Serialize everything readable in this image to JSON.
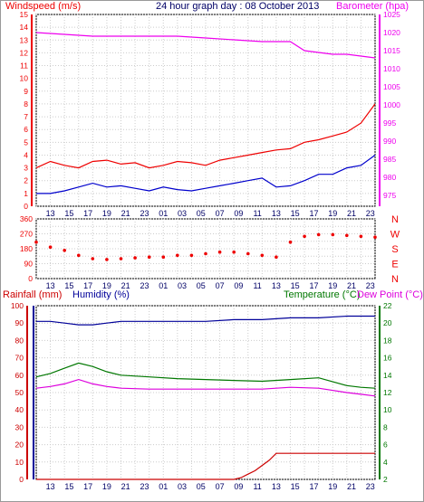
{
  "header": {
    "wind_label": "Windspeed (m/s)",
    "title": "24 hour graph day : 08 October 2013",
    "baro_label": "Barometer (hpa)"
  },
  "bottom_header": {
    "rain_label": "Rainfall (mm)",
    "humidity_label": "Humidity (%)",
    "temp_label": "Temperature (°C)",
    "dew_label": "Dew Point (°C)"
  },
  "x_ticks": [
    "13",
    "15",
    "17",
    "19",
    "21",
    "23",
    "01",
    "03",
    "05",
    "07",
    "09",
    "11",
    "13",
    "15",
    "17",
    "19",
    "21",
    "23"
  ],
  "colors": {
    "wind_gust": "#ee0000",
    "wind_avg": "#0000cc",
    "barometer": "#ee00ee",
    "wind_dir": "#ee0000",
    "rain": "#cc0000",
    "humidity": "#000099",
    "temperature": "#007700",
    "dewpoint": "#dd00dd"
  },
  "chart_data": [
    {
      "type": "line",
      "name": "wind-barometer",
      "x_range": [
        12,
        36
      ],
      "y_left": {
        "label": "Windspeed (m/s)",
        "range": [
          0,
          15
        ],
        "ticks": [
          0,
          1,
          2,
          3,
          4,
          5,
          6,
          7,
          8,
          9,
          10,
          11,
          12,
          13,
          14,
          15
        ]
      },
      "y_right": {
        "label": "Barometer (hpa)",
        "range": [
          972,
          1025
        ],
        "ticks": [
          975,
          980,
          985,
          990,
          995,
          1000,
          1005,
          1010,
          1015,
          1020,
          1025
        ]
      },
      "series": [
        {
          "name": "Windspeed (m/s)",
          "key": "gust",
          "axis": "left",
          "x": [
            12,
            13,
            14,
            15,
            16,
            17,
            18,
            19,
            20,
            21,
            22,
            23,
            24,
            25,
            26,
            27,
            28,
            29,
            30,
            31,
            32,
            33,
            34,
            35,
            36
          ],
          "y": [
            3,
            3.5,
            3.2,
            3,
            3.5,
            3.6,
            3.3,
            3.4,
            3,
            3.2,
            3.5,
            3.4,
            3.2,
            3.6,
            3.8,
            4,
            4.2,
            4.4,
            4.5,
            5,
            5.2,
            5.5,
            5.8,
            6.5,
            8
          ]
        },
        {
          "name": "wind-average",
          "key": "avg",
          "axis": "left",
          "x": [
            12,
            13,
            14,
            15,
            16,
            17,
            18,
            19,
            20,
            21,
            22,
            23,
            24,
            25,
            26,
            27,
            28,
            29,
            30,
            31,
            32,
            33,
            34,
            35,
            36
          ],
          "y": [
            1,
            1,
            1.2,
            1.5,
            1.8,
            1.5,
            1.6,
            1.4,
            1.2,
            1.5,
            1.3,
            1.2,
            1.4,
            1.6,
            1.8,
            2,
            2.2,
            1.5,
            1.6,
            2,
            2.5,
            2.5,
            3,
            3.2,
            4
          ]
        },
        {
          "name": "Barometer (hpa)",
          "key": "baro",
          "axis": "right",
          "x": [
            12,
            14,
            16,
            18,
            20,
            22,
            24,
            26,
            28,
            30,
            31,
            32,
            33,
            34,
            35,
            36
          ],
          "y": [
            1020,
            1019.5,
            1019,
            1019,
            1019,
            1019,
            1018.5,
            1018,
            1017.5,
            1017.5,
            1015,
            1014.5,
            1014,
            1014,
            1013.5,
            1013
          ]
        }
      ]
    },
    {
      "type": "scatter",
      "name": "wind-direction",
      "x_range": [
        12,
        36
      ],
      "y_left": {
        "range": [
          0,
          360
        ],
        "ticks": [
          0,
          45,
          90,
          135,
          180,
          225,
          270,
          315,
          360
        ]
      },
      "compass_labels": [
        "N",
        "W",
        "S",
        "E",
        "N"
      ],
      "series": [
        {
          "name": "wind-direction",
          "x": [
            12,
            13,
            14,
            15,
            16,
            17,
            18,
            19,
            20,
            21,
            22,
            23,
            24,
            25,
            26,
            27,
            28,
            29,
            30,
            31,
            32,
            33,
            34,
            35,
            36
          ],
          "y": [
            220,
            190,
            170,
            140,
            120,
            115,
            120,
            125,
            130,
            130,
            140,
            140,
            150,
            160,
            160,
            150,
            140,
            130,
            220,
            255,
            265,
            265,
            260,
            255,
            250
          ]
        }
      ]
    },
    {
      "type": "line",
      "name": "rain-humidity-temperature",
      "x_range": [
        12,
        36
      ],
      "y_left": {
        "label": "Rainfall (mm)",
        "range": [
          0,
          100
        ],
        "ticks": [
          0,
          10,
          20,
          30,
          40,
          50,
          60,
          70,
          80,
          90,
          100
        ]
      },
      "y_left2": {
        "label": "Humidity (%)",
        "range": [
          0,
          100
        ]
      },
      "y_right": {
        "label": "Temperature (°C)",
        "range": [
          2,
          22
        ],
        "ticks": [
          2,
          4,
          6,
          8,
          10,
          12,
          14,
          16,
          18,
          20,
          22
        ]
      },
      "series": [
        {
          "name": "Humidity (%)",
          "key": "hum",
          "axis": "left",
          "x": [
            12,
            13,
            14,
            15,
            16,
            17,
            18,
            20,
            22,
            24,
            26,
            28,
            30,
            32,
            34,
            36
          ],
          "y": [
            91,
            91,
            90,
            89,
            89,
            90,
            91,
            91,
            91,
            91,
            92,
            92,
            93,
            93,
            94,
            94
          ]
        },
        {
          "name": "Temperature (°C)",
          "key": "temp",
          "axis": "right",
          "x": [
            12,
            13,
            14,
            15,
            16,
            17,
            18,
            20,
            22,
            24,
            26,
            28,
            30,
            32,
            34,
            35,
            36
          ],
          "y": [
            13.8,
            14.2,
            14.8,
            15.4,
            15,
            14.4,
            14,
            13.8,
            13.6,
            13.5,
            13.4,
            13.3,
            13.5,
            13.7,
            12.8,
            12.6,
            12.5
          ]
        },
        {
          "name": "Dew Point (°C)",
          "key": "dew",
          "axis": "right",
          "x": [
            12,
            13,
            14,
            15,
            16,
            17,
            18,
            20,
            22,
            24,
            26,
            28,
            30,
            32,
            34,
            35,
            36
          ],
          "y": [
            12.5,
            12.7,
            13,
            13.5,
            13,
            12.7,
            12.5,
            12.4,
            12.4,
            12.4,
            12.4,
            12.4,
            12.6,
            12.5,
            12,
            11.8,
            11.6
          ]
        },
        {
          "name": "Rainfall (mm)",
          "key": "rain",
          "axis": "left",
          "x": [
            12,
            24,
            25,
            26,
            26.5,
            27,
            27.5,
            28,
            28.5,
            29,
            30,
            32,
            34,
            36
          ],
          "y": [
            0,
            0,
            0,
            0,
            1,
            3,
            5,
            8,
            11,
            15,
            15,
            15,
            15,
            15
          ]
        }
      ]
    }
  ]
}
